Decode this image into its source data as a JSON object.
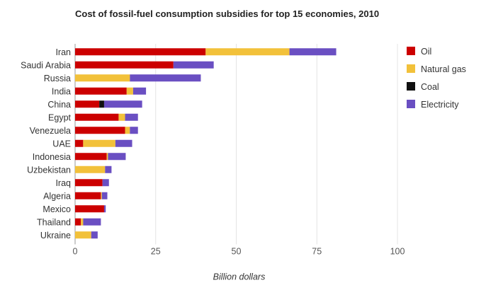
{
  "chart_data": {
    "type": "bar",
    "orientation": "horizontal",
    "stacked": true,
    "title": "Cost of fossil-fuel consumption subsidies for top 15 economies, 2010",
    "xlabel": "Billion dollars",
    "ylabel": "",
    "xlim": [
      0,
      100
    ],
    "xticks": [
      0,
      25,
      50,
      75,
      100
    ],
    "grid": true,
    "legend_position": "right",
    "categories": [
      "Iran",
      "Saudi Arabia",
      "Russia",
      "India",
      "China",
      "Egypt",
      "Venezuela",
      "UAE",
      "Indonesia",
      "Uzbekistan",
      "Iraq",
      "Algeria",
      "Mexico",
      "Thailand",
      "Ukraine"
    ],
    "series": [
      {
        "name": "Oil",
        "color": "#cc0000",
        "values": [
          40.5,
          30.5,
          0,
          16,
          7.5,
          13.5,
          15.5,
          2.5,
          9.8,
          0,
          8.5,
          8,
          9,
          1.8,
          0
        ]
      },
      {
        "name": "Natural gas",
        "color": "#f2c13a",
        "values": [
          26,
          0,
          17,
          2,
          0,
          2,
          1.5,
          10,
          0.4,
          9.3,
          0,
          0.3,
          0,
          0.7,
          5
        ]
      },
      {
        "name": "Coal",
        "color": "#111111",
        "values": [
          0,
          0,
          0,
          0,
          1.5,
          0,
          0,
          0,
          0,
          0,
          0,
          0,
          0,
          0,
          0
        ]
      },
      {
        "name": "Electricity",
        "color": "#6a4fc2",
        "values": [
          14.5,
          12.5,
          22,
          4,
          11.8,
          4,
          2.5,
          5.2,
          5.5,
          2,
          2,
          1.7,
          0.5,
          5.5,
          2
        ]
      }
    ]
  }
}
